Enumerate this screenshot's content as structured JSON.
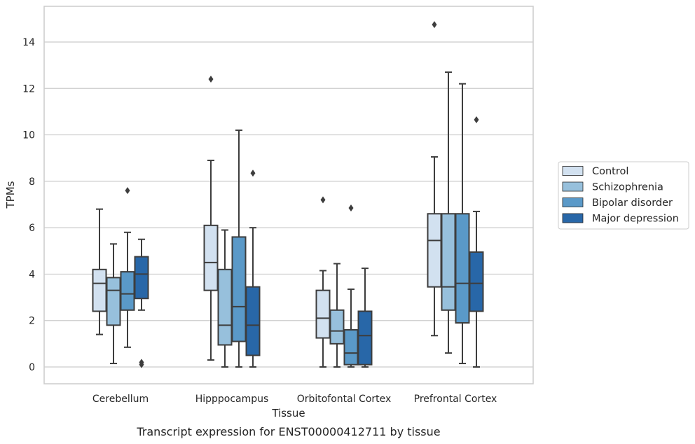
{
  "chart_data": {
    "type": "boxplot",
    "caption": "Transcript expression for ENST00000412711 by tissue",
    "xlabel": "Tissue",
    "ylabel": "TPMs",
    "ylim": [
      -0.7,
      15.3
    ],
    "yticks": [
      0,
      2,
      4,
      6,
      8,
      10,
      12,
      14
    ],
    "grid": "horizontal",
    "legend_position": "right",
    "categories": [
      "Cerebellum",
      "Hipppocampus",
      "Orbitofontal Cortex",
      "Prefrontal Cortex"
    ],
    "series": [
      {
        "name": "Control",
        "color": "#d2e1f0",
        "boxes": [
          {
            "whislo": 1.4,
            "q1": 2.4,
            "med": 3.6,
            "q3": 4.2,
            "whishi": 6.8,
            "fliers": []
          },
          {
            "whislo": 0.3,
            "q1": 3.3,
            "med": 4.5,
            "q3": 6.1,
            "whishi": 8.9,
            "fliers": [
              12.4
            ]
          },
          {
            "whislo": 0.0,
            "q1": 1.25,
            "med": 2.1,
            "q3": 3.3,
            "whishi": 4.15,
            "fliers": [
              7.2
            ]
          },
          {
            "whislo": 1.35,
            "q1": 3.45,
            "med": 5.45,
            "q3": 6.6,
            "whishi": 9.05,
            "fliers": [
              14.75
            ]
          }
        ]
      },
      {
        "name": "Schizophrenia",
        "color": "#97c0dc",
        "boxes": [
          {
            "whislo": 0.15,
            "q1": 1.8,
            "med": 3.3,
            "q3": 3.85,
            "whishi": 5.3,
            "fliers": []
          },
          {
            "whislo": 0.0,
            "q1": 0.95,
            "med": 1.8,
            "q3": 4.2,
            "whishi": 5.9,
            "fliers": []
          },
          {
            "whislo": 0.0,
            "q1": 1.0,
            "med": 1.55,
            "q3": 2.45,
            "whishi": 4.45,
            "fliers": []
          },
          {
            "whislo": 0.6,
            "q1": 2.45,
            "med": 3.45,
            "q3": 6.6,
            "whishi": 12.7,
            "fliers": []
          }
        ]
      },
      {
        "name": "Bipolar disorder",
        "color": "#5a99c8",
        "boxes": [
          {
            "whislo": 0.85,
            "q1": 2.45,
            "med": 3.15,
            "q3": 4.1,
            "whishi": 5.8,
            "fliers": [
              7.6
            ]
          },
          {
            "whislo": 0.0,
            "q1": 1.1,
            "med": 2.6,
            "q3": 5.6,
            "whishi": 10.2,
            "fliers": []
          },
          {
            "whislo": 0.0,
            "q1": 0.1,
            "med": 0.6,
            "q3": 1.6,
            "whishi": 3.35,
            "fliers": [
              6.85
            ]
          },
          {
            "whislo": 0.15,
            "q1": 1.9,
            "med": 3.6,
            "q3": 6.6,
            "whishi": 12.2,
            "fliers": []
          }
        ]
      },
      {
        "name": "Major depression",
        "color": "#2867a8",
        "boxes": [
          {
            "whislo": 2.45,
            "q1": 2.95,
            "med": 4.0,
            "q3": 4.75,
            "whishi": 5.5,
            "fliers": [
              0.2,
              0.1
            ]
          },
          {
            "whislo": 0.0,
            "q1": 0.5,
            "med": 1.8,
            "q3": 3.45,
            "whishi": 6.0,
            "fliers": [
              8.35
            ]
          },
          {
            "whislo": 0.0,
            "q1": 0.1,
            "med": 1.35,
            "q3": 2.4,
            "whishi": 4.25,
            "fliers": []
          },
          {
            "whislo": 0.0,
            "q1": 2.4,
            "med": 3.6,
            "q3": 4.95,
            "whishi": 6.7,
            "fliers": [
              10.65
            ]
          }
        ]
      }
    ]
  }
}
